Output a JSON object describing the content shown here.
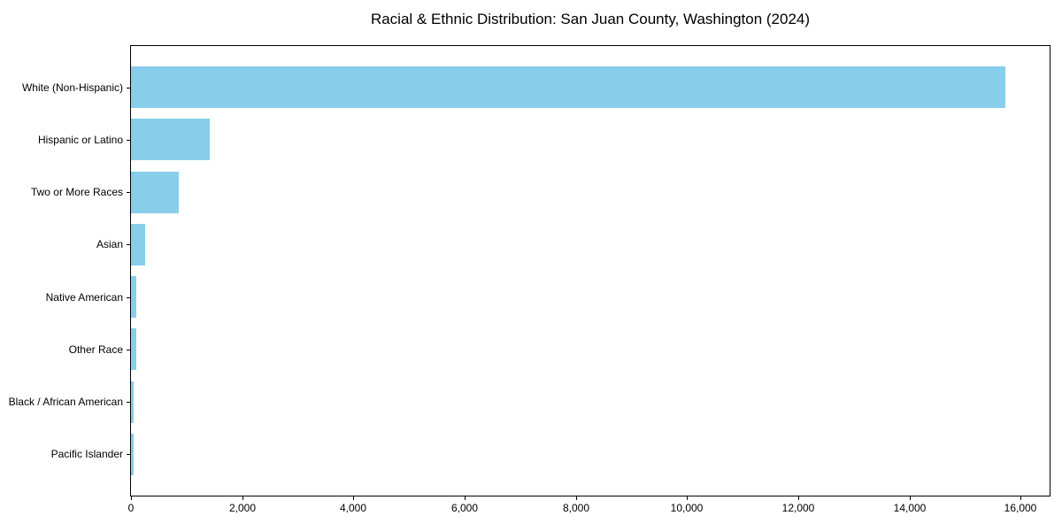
{
  "chart_data": {
    "type": "bar",
    "orientation": "horizontal",
    "title": "Racial & Ethnic Distribution: San Juan County, Washington (2024)",
    "categories": [
      "White (Non-Hispanic)",
      "Hispanic or Latino",
      "Two or More Races",
      "Asian",
      "Native American",
      "Other Race",
      "Black / African American",
      "Pacific Islander"
    ],
    "values": [
      15730,
      1420,
      860,
      260,
      100,
      90,
      55,
      45
    ],
    "bar_color": "#87CEEB",
    "xlabel": "",
    "ylabel": "",
    "xlim": [
      0,
      16520
    ],
    "xtick_values": [
      0,
      2000,
      4000,
      6000,
      8000,
      10000,
      12000,
      14000,
      16000
    ],
    "xtick_labels": [
      "0",
      "2,000",
      "4,000",
      "6,000",
      "8,000",
      "10,000",
      "12,000",
      "14,000",
      "16,000"
    ],
    "grid": false,
    "legend_position": "none",
    "background_color": "#ffffff",
    "frame": "full-box"
  }
}
